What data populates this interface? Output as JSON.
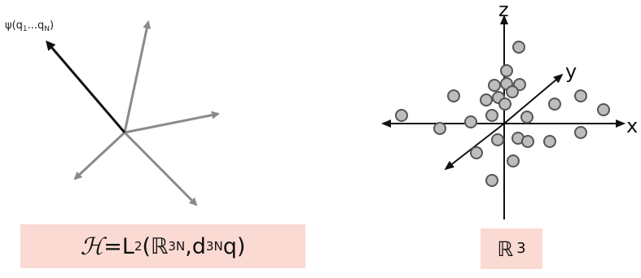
{
  "hilbert_panel": {
    "state_label": "ψ(q₁...q_N)",
    "state_label_main": "ψ(q",
    "state_label_sub1": "1",
    "state_label_mid": "...q",
    "state_label_subN": "N",
    "state_label_end": ")",
    "formula": {
      "script_H": "ℋ",
      "eq_L": "=L",
      "exp_2": "2",
      "open_R": "(ℝ",
      "exp_3N": "3N",
      "comma_d": ",d",
      "exp_3N_b": "3N",
      "q_close": "q)"
    },
    "box_color": "#fadad2",
    "vector_color": "#8a8a8a",
    "state_vector_color": "#111111"
  },
  "config_panel": {
    "axis_x": "x",
    "axis_y": "y",
    "axis_z": "z",
    "space_symbol": "ℝ",
    "space_exp": "3",
    "box_color": "#fadad2",
    "particle_fill": "#bdbdbd",
    "particle_stroke": "#555555",
    "particle_count": 29
  }
}
